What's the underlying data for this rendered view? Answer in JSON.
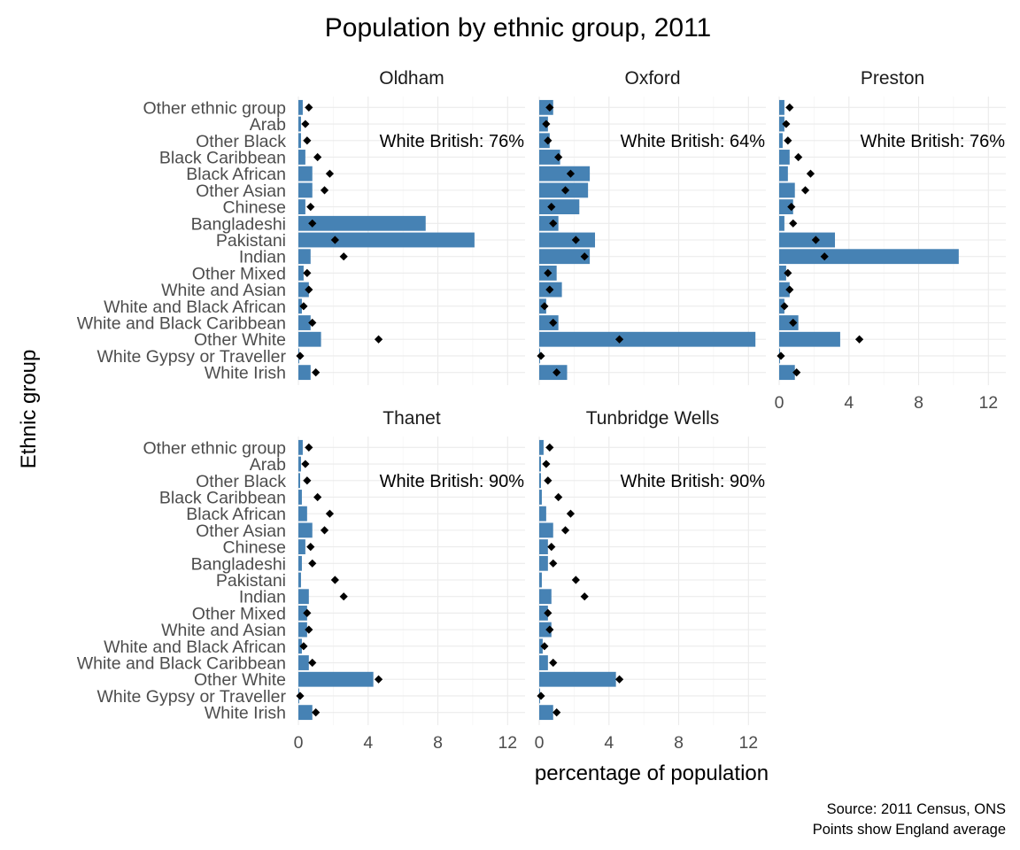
{
  "chart_data": {
    "type": "bar",
    "orientation": "horizontal",
    "title": "Population by ethnic group, 2011",
    "xlabel": "percentage of population",
    "ylabel": "Ethnic group",
    "xlim": [
      0,
      13
    ],
    "x_ticks": [
      0,
      4,
      8,
      12
    ],
    "grid": true,
    "caption": [
      "Source: 2011 Census, ONS",
      "Points show England average"
    ],
    "categories": [
      "White Irish",
      "White Gypsy or Traveller",
      "Other White",
      "White and Black Caribbean",
      "White and Black African",
      "White and Asian",
      "Other Mixed",
      "Indian",
      "Pakistani",
      "Bangladeshi",
      "Chinese",
      "Other Asian",
      "Black African",
      "Black Caribbean",
      "Other Black",
      "Arab",
      "Other ethnic group"
    ],
    "england_average": [
      1.0,
      0.1,
      4.6,
      0.8,
      0.3,
      0.6,
      0.5,
      2.6,
      2.1,
      0.8,
      0.7,
      1.5,
      1.8,
      1.1,
      0.5,
      0.4,
      0.6
    ],
    "panels": [
      {
        "name": "Oldham",
        "annotation": "White British: 76%",
        "values": [
          0.7,
          0.05,
          1.3,
          0.7,
          0.2,
          0.6,
          0.3,
          0.7,
          10.1,
          7.3,
          0.4,
          0.8,
          0.8,
          0.4,
          0.15,
          0.15,
          0.25
        ]
      },
      {
        "name": "Oxford",
        "annotation": "White British: 64%",
        "values": [
          1.6,
          0.05,
          12.4,
          1.1,
          0.4,
          1.3,
          1.0,
          2.9,
          3.2,
          1.1,
          2.3,
          2.8,
          2.9,
          1.2,
          0.6,
          0.5,
          0.8
        ]
      },
      {
        "name": "Preston",
        "annotation": "White British: 76%",
        "values": [
          0.9,
          0.05,
          3.5,
          1.1,
          0.3,
          0.6,
          0.4,
          10.3,
          3.2,
          0.3,
          0.8,
          0.9,
          0.5,
          0.6,
          0.2,
          0.3,
          0.3
        ]
      },
      {
        "name": "Thanet",
        "annotation": "White British: 90%",
        "values": [
          0.8,
          0.05,
          4.3,
          0.6,
          0.2,
          0.5,
          0.5,
          0.6,
          0.15,
          0.2,
          0.4,
          0.8,
          0.5,
          0.2,
          0.1,
          0.15,
          0.25
        ]
      },
      {
        "name": "Tunbridge Wells",
        "annotation": "White British: 90%",
        "values": [
          0.8,
          0.05,
          4.4,
          0.5,
          0.2,
          0.7,
          0.5,
          0.7,
          0.15,
          0.5,
          0.5,
          0.8,
          0.4,
          0.15,
          0.1,
          0.1,
          0.25
        ]
      }
    ]
  }
}
